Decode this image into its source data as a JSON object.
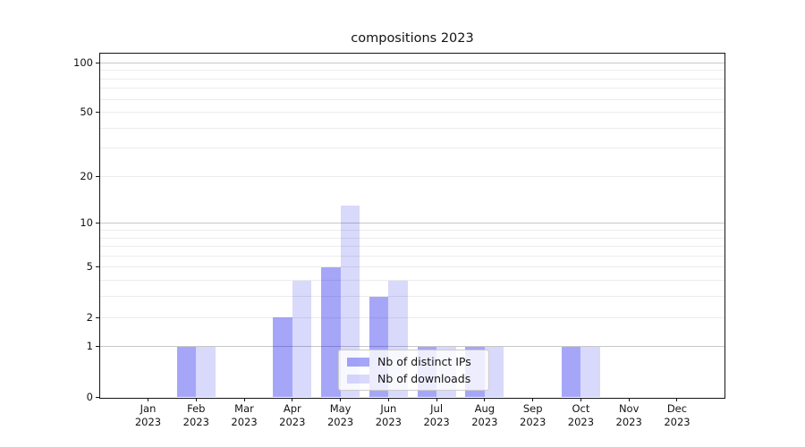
{
  "chart_data": {
    "type": "bar",
    "title": "compositions 2023",
    "categories": [
      "Jan",
      "Feb",
      "Mar",
      "Apr",
      "May",
      "Jun",
      "Jul",
      "Aug",
      "Sep",
      "Oct",
      "Nov",
      "Dec"
    ],
    "year_label": "2023",
    "series": [
      {
        "name": "Nb of distinct IPs",
        "color": "#0000eb",
        "alpha": 0.35,
        "values": [
          0,
          1,
          0,
          2,
          5,
          3,
          1,
          1,
          0,
          1,
          0,
          0
        ]
      },
      {
        "name": "Nb of downloads",
        "color": "#0000eb",
        "alpha": 0.15,
        "values": [
          0,
          1,
          0,
          4,
          13,
          4,
          1,
          1,
          0,
          1,
          0,
          0
        ]
      }
    ],
    "y_scale": "log1p",
    "y_ticks": [
      0,
      1,
      2,
      5,
      10,
      20,
      50,
      100
    ],
    "ylim": [
      0,
      113
    ],
    "grid": {
      "major": [
        1,
        10,
        100
      ],
      "minor": [
        2,
        3,
        4,
        5,
        6,
        7,
        8,
        9,
        20,
        30,
        40,
        50,
        60,
        70,
        80,
        90
      ]
    },
    "legend_position": "lower center",
    "xlabel": "",
    "ylabel": ""
  },
  "colors": {
    "major_grid": "#c8c8c8",
    "minor_grid": "#ececec",
    "spine": "#151515",
    "text": "#141414",
    "legend_bg": "rgba(255,255,255,0.8)",
    "legend_border": "#cccccc"
  }
}
